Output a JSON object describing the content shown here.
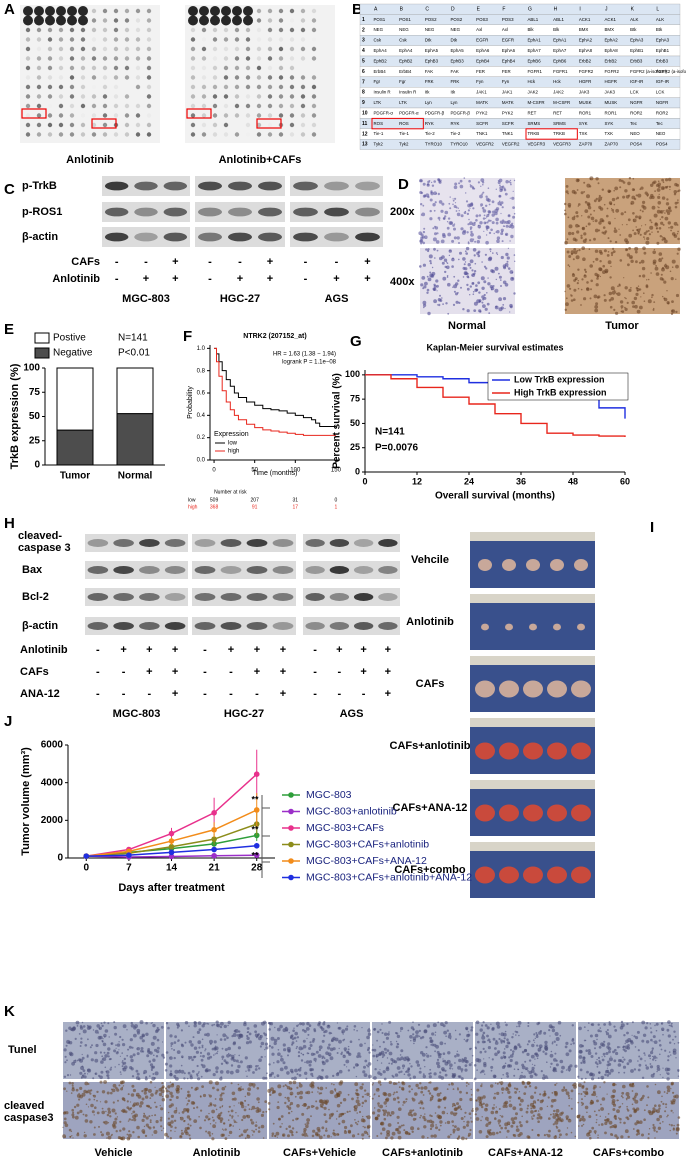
{
  "figure": {
    "panel_labels": [
      "A",
      "B",
      "C",
      "D",
      "E",
      "F",
      "G",
      "H",
      "I",
      "J",
      "K"
    ],
    "A": {
      "captions": [
        "Anlotinib",
        "Anlotinib+CAFs"
      ]
    },
    "B": {
      "header": [
        "A",
        "B",
        "C",
        "D",
        "E",
        "F",
        "G",
        "H",
        "I",
        "J",
        "K",
        "L"
      ],
      "rows": [
        {
          "num": "1",
          "cells": [
            "POS1",
            "POS1",
            "POS2",
            "POS2",
            "POS3",
            "POS3",
            "ABL1",
            "ABL1",
            "ACK1",
            "ACK1",
            "ALK",
            "ALK"
          ]
        },
        {
          "num": "2",
          "cells": [
            "NEG",
            "NEG",
            "NEG",
            "NEG",
            "Axl",
            "Axl",
            "Blk",
            "Blk",
            "BMX",
            "BMX",
            "Btk",
            "Btk"
          ]
        },
        {
          "num": "3",
          "cells": [
            "Csk",
            "Csk",
            "Dtk",
            "Dtk",
            "EGFR",
            "EGFR",
            "EphA1",
            "EphA1",
            "EphA2",
            "EphA2",
            "EphA3",
            "EphA3"
          ]
        },
        {
          "num": "4",
          "cells": [
            "EphA4",
            "EphA4",
            "EphA5",
            "EphA5",
            "EphA6",
            "EphA6",
            "EphA7",
            "EphA7",
            "EphA8",
            "EphA8",
            "EphB1",
            "EphB1"
          ]
        },
        {
          "num": "5",
          "cells": [
            "EphB2",
            "EphB2",
            "EphB3",
            "EphB3",
            "EphB4",
            "EphB4",
            "EphB6",
            "EphB6",
            "ErbB2",
            "ErbB2",
            "ErbB3",
            "ErbB3"
          ]
        },
        {
          "num": "6",
          "cells": [
            "ErbB4",
            "ErbB4",
            "FAK",
            "FAK",
            "FER",
            "FER",
            "FGFR1",
            "FGFR1",
            "FGFR2",
            "FGFR2",
            "FGFR2 (a-isoform)",
            "FGFR2 (a-isoform)"
          ]
        },
        {
          "num": "7",
          "cells": [
            "Fgr",
            "Fgr",
            "FRK",
            "FRK",
            "Fyn",
            "Fyn",
            "Hck",
            "Hck",
            "HGFR",
            "HGFR",
            "IGF-IR",
            "IGF-IR"
          ]
        },
        {
          "num": "8",
          "cells": [
            "Insulin R",
            "Insulin R",
            "Itk",
            "Itk",
            "JAK1",
            "JAK1",
            "JAK2",
            "JAK2",
            "JAK3",
            "JAK3",
            "LCK",
            "LCK"
          ]
        },
        {
          "num": "9",
          "cells": [
            "LTK",
            "LTK",
            "Lyn",
            "Lyn",
            "MATK",
            "MATK",
            "M-CSFR",
            "M-CSFR",
            "MUSK",
            "MUSK",
            "NGFR",
            "NGFR"
          ]
        },
        {
          "num": "10",
          "cells": [
            "PDGFR-α",
            "PDGFR-α",
            "PDGFR-β",
            "PDGFR-β",
            "PYK2",
            "PYK2",
            "RET",
            "RET",
            "ROR1",
            "ROR1",
            "ROR2",
            "ROR2"
          ]
        },
        {
          "num": "11",
          "cells": [
            "ROS",
            "ROS",
            "RYK",
            "RYK",
            "SCFR",
            "SCFR",
            "SRMS",
            "SRMS",
            "SYK",
            "SYK",
            "Tec",
            "Tec"
          ]
        },
        {
          "num": "12",
          "cells": [
            "Tie-1",
            "Tie-1",
            "Tie-2",
            "Tie-2",
            "TNK1",
            "TNK1",
            "TRKB",
            "TRKB",
            "TXK",
            "TXK",
            "NEO",
            "NEO"
          ]
        },
        {
          "num": "13",
          "cells": [
            "Tyk2",
            "Tyk2",
            "TYRO10",
            "TYRO10",
            "VEGFR2",
            "VEGFR2",
            "VEGFR3",
            "VEGFR3",
            "ZAP70",
            "ZAP70",
            "POS4",
            "POS4"
          ]
        }
      ]
    },
    "C": {
      "proteins": [
        "p-TrkB",
        "p-ROS1",
        "β-actin"
      ],
      "conditions": [
        {
          "name": "CAFs",
          "signs": [
            "-",
            "-",
            "+",
            "-",
            "-",
            "+",
            "-",
            "-",
            "+"
          ]
        },
        {
          "name": "Anlotinib",
          "signs": [
            "-",
            "+",
            "+",
            "-",
            "+",
            "+",
            "-",
            "+",
            "+"
          ]
        }
      ],
      "cell_lines": [
        "MGC-803",
        "HGC-27",
        "AGS"
      ]
    },
    "D": {
      "magnifications": [
        "200x",
        "400x"
      ],
      "tissues": [
        "Normal",
        "Tumor"
      ]
    },
    "H": {
      "proteins": [
        "cleaved-caspase 3",
        "Bax",
        "Bcl-2",
        "β-actin"
      ],
      "conditions": [
        {
          "name": "Anlotinib",
          "signs": [
            "-",
            "+",
            "+",
            "+",
            "-",
            "+",
            "+",
            "+",
            "-",
            "+",
            "+",
            "+"
          ]
        },
        {
          "name": "CAFs",
          "signs": [
            "-",
            "-",
            "+",
            "+",
            "-",
            "-",
            "+",
            "+",
            "-",
            "-",
            "+",
            "+"
          ]
        },
        {
          "name": "ANA-12",
          "signs": [
            "-",
            "-",
            "-",
            "+",
            "-",
            "-",
            "-",
            "+",
            "-",
            "-",
            "-",
            "+"
          ]
        }
      ],
      "cell_lines": [
        "MGC-803",
        "HGC-27",
        "AGS"
      ]
    },
    "I": {
      "groups": [
        "Vehcile",
        "Anlotinib",
        "CAFs",
        "CAFs+anlotinib",
        "CAFs+ANA-12",
        "CAFs+combo"
      ]
    },
    "K": {
      "stains": [
        "Tunel",
        "cleaved caspase3"
      ],
      "groups": [
        "Vehicle",
        "Anlotinib",
        "CAFs+Vehicle",
        "CAFs+anlotinib",
        "CAFs+ANA-12",
        "CAFs+combo"
      ]
    }
  },
  "chart_data": [
    {
      "type": "bar",
      "stacked": true,
      "ylabel": "TrkB expression (%)",
      "categories": [
        "Tumor",
        "Normal"
      ],
      "series": [
        {
          "name": "Negative",
          "color": "#4d4d4d",
          "values": [
            36,
            53
          ]
        },
        {
          "name": "Postive",
          "color": "#ffffff",
          "values": [
            64,
            47
          ]
        }
      ],
      "annotations": [
        "P<0.01",
        "N=141"
      ],
      "ylim": [
        0,
        100
      ],
      "yticks": [
        0,
        25,
        50,
        75,
        100
      ]
    },
    {
      "type": "line",
      "step": true,
      "title": "NTRK2 (207152_at)",
      "annotations": [
        "HR = 1.63 (1.38 − 1.94)",
        "logrank P = 1.1e−08"
      ],
      "xlabel": "Time (months)",
      "ylabel": "Probability",
      "legend_title": "Expression",
      "series": [
        {
          "name": "low",
          "color": "#000000",
          "x": [
            0,
            3,
            6,
            10,
            15,
            20,
            25,
            30,
            40,
            50,
            60,
            70,
            80,
            90,
            100,
            110,
            120,
            125,
            130,
            140,
            150
          ],
          "values": [
            1,
            0.95,
            0.88,
            0.8,
            0.72,
            0.66,
            0.6,
            0.56,
            0.52,
            0.49,
            0.46,
            0.45,
            0.44,
            0.42,
            0.4,
            0.38,
            0.36,
            0.33,
            0.3,
            0.3,
            0.3
          ]
        },
        {
          "name": "high",
          "color": "#e8261c",
          "x": [
            0,
            3,
            6,
            10,
            15,
            20,
            25,
            30,
            40,
            50,
            60,
            70,
            80,
            90,
            100,
            110,
            120,
            130,
            140,
            150
          ],
          "values": [
            1,
            0.88,
            0.75,
            0.62,
            0.52,
            0.45,
            0.4,
            0.36,
            0.32,
            0.29,
            0.27,
            0.26,
            0.25,
            0.24,
            0.23,
            0.22,
            0.22,
            0.22,
            0.22,
            0.22
          ]
        }
      ],
      "xlim": [
        -5,
        155
      ],
      "ylim": [
        0,
        1.03
      ],
      "xticks": [
        0,
        50,
        100,
        150
      ],
      "yticks": [
        {
          "value": 0,
          "label": "0.0"
        },
        0.2,
        0.4,
        0.6,
        0.8,
        {
          "value": 1,
          "label": "1.0"
        }
      ],
      "number_at_risk": {
        "title": "Number at risk",
        "rows": [
          {
            "name": "low",
            "values": [
              509,
              207,
              31,
              0
            ]
          },
          {
            "name": "high",
            "values": [
              368,
              91,
              17,
              1
            ]
          }
        ]
      }
    },
    {
      "type": "line",
      "step": true,
      "title": "Kaplan-Meier survival estimates",
      "xlabel": "Overall survival (months)",
      "ylabel": "Percent survival (%)",
      "annotations": [
        "N=141",
        "P=0.0076"
      ],
      "series": [
        {
          "name": "Low TrkB expression",
          "color": "#1f2fe0",
          "x": [
            0,
            6,
            12,
            18,
            24,
            30,
            36,
            42,
            48,
            54,
            60
          ],
          "values": [
            100,
            100,
            98,
            96,
            92,
            89,
            86,
            82,
            76,
            66,
            55
          ]
        },
        {
          "name": "High TrkB expression",
          "color": "#e8261c",
          "x": [
            0,
            6,
            12,
            18,
            24,
            30,
            36,
            42,
            48,
            54,
            60
          ],
          "values": [
            100,
            96,
            87,
            77,
            70,
            60,
            50,
            40,
            38,
            37,
            36
          ]
        }
      ],
      "xlim": [
        0,
        60
      ],
      "ylim": [
        0,
        105
      ],
      "xticks": [
        0,
        12,
        24,
        36,
        48,
        60
      ],
      "yticks": [
        0,
        25,
        50,
        75,
        100
      ]
    },
    {
      "type": "line",
      "xlabel": "Days after treatment",
      "ylabel": "Tumor volume (mm³)",
      "x": [
        0,
        7,
        14,
        21,
        28
      ],
      "series": [
        {
          "name": "MGC-803",
          "color": "#2e9e3a",
          "values": [
            100,
            300,
            500,
            750,
            1200
          ],
          "errors": [
            0,
            50,
            100,
            150,
            300
          ]
        },
        {
          "name": "MGC-803+anlotinib",
          "color": "#9b2fc8",
          "values": [
            100,
            50,
            80,
            120,
            150
          ],
          "errors": [
            0,
            20,
            30,
            40,
            60
          ]
        },
        {
          "name": "MGC-803+CAFs",
          "color": "#e8318c",
          "values": [
            100,
            450,
            1300,
            2400,
            4450
          ],
          "errors": [
            0,
            100,
            300,
            800,
            1300
          ]
        },
        {
          "name": "MGC-803+CAFs+anlotinib",
          "color": "#8c8c1a",
          "values": [
            100,
            250,
            600,
            1000,
            1800
          ],
          "errors": [
            0,
            60,
            150,
            300,
            600
          ]
        },
        {
          "name": "MGC-803+CAFs+ANA-12",
          "color": "#f28c1a",
          "values": [
            100,
            350,
            900,
            1500,
            2550
          ],
          "errors": [
            0,
            80,
            200,
            400,
            900
          ]
        },
        {
          "name": "MGC-803+CAFs+anlotinib+ANA-12",
          "color": "#1f2fe0",
          "values": [
            100,
            150,
            300,
            450,
            650
          ],
          "errors": [
            0,
            30,
            60,
            100,
            150
          ]
        }
      ],
      "annotations": [
        "**",
        "**",
        "**"
      ],
      "xlim": [
        -3,
        31
      ],
      "ylim": [
        0,
        6000
      ],
      "xticks": [
        0,
        7,
        14,
        21,
        28
      ],
      "yticks": [
        0,
        2000,
        4000,
        6000
      ]
    }
  ]
}
